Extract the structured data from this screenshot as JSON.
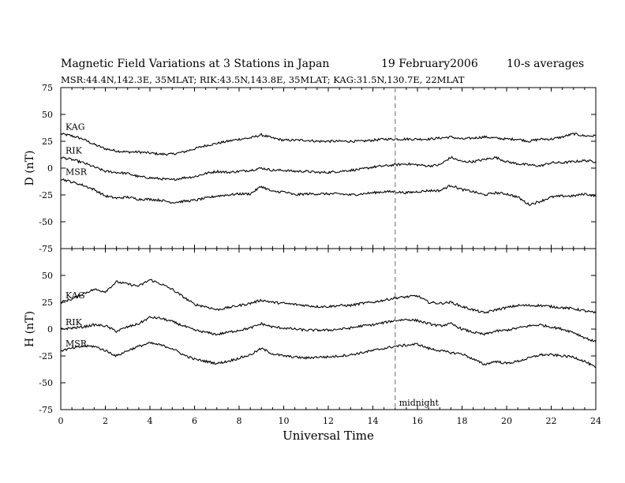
{
  "header": {
    "title": "Magnetic Field Variations at 3 Stations in Japan",
    "date": "19 February2006",
    "averaging": "10-s averages",
    "subtitle": "MSR:44.4N,142.3E, 35MLAT;  RIK:43.5N,143.8E, 35MLAT;  KAG:31.5N,130.7E, 22MLAT"
  },
  "chart_data": {
    "type": "line",
    "title": "Magnetic Field Variations at 3 Stations in Japan",
    "xlabel": "Universal Time",
    "xlim": [
      0,
      24
    ],
    "x_ticks": [
      0,
      2,
      4,
      6,
      8,
      10,
      12,
      14,
      16,
      18,
      20,
      22,
      24
    ],
    "annotation": {
      "text": "midnight",
      "x": 15
    },
    "panels": [
      {
        "name": "D",
        "ylabel": "D (nT)",
        "ylim": [
          -75,
          75
        ],
        "y_ticks": [
          75,
          50,
          25,
          0,
          -25,
          -50,
          -75
        ],
        "x": [
          0,
          0.5,
          1,
          1.5,
          2,
          2.5,
          3,
          3.5,
          4,
          4.5,
          5,
          5.5,
          6,
          6.5,
          7,
          7.5,
          8,
          8.5,
          9,
          9.5,
          10,
          10.5,
          11,
          11.5,
          12,
          12.5,
          13,
          13.5,
          14,
          14.5,
          15,
          15.5,
          16,
          16.5,
          17,
          17.5,
          18,
          18.5,
          19,
          19.5,
          20,
          20.5,
          21,
          21.5,
          22,
          22.5,
          23,
          23.5,
          24
        ],
        "series": [
          {
            "name": "KAG",
            "values": [
              32,
              30,
              27,
              22,
              18,
              16,
              15,
              15,
              14,
              13,
              13,
              15,
              18,
              21,
              23,
              25,
              27,
              28,
              31,
              28,
              26,
              26,
              26,
              25,
              25,
              25,
              25,
              25,
              26,
              27,
              27,
              27,
              27,
              27,
              28,
              29,
              27,
              28,
              29,
              28,
              27,
              27,
              25,
              27,
              27,
              29,
              32,
              30,
              30
            ]
          },
          {
            "name": "RIK",
            "values": [
              10,
              8,
              5,
              1,
              -3,
              -4,
              -5,
              -8,
              -9,
              -10,
              -11,
              -9,
              -8,
              -5,
              -3,
              -4,
              -3,
              -2,
              0,
              -2,
              -2,
              -3,
              -3,
              -4,
              -4,
              -3,
              -2,
              -1,
              1,
              2,
              3,
              4,
              3,
              2,
              3,
              10,
              6,
              6,
              8,
              10,
              6,
              4,
              3,
              2,
              5,
              5,
              6,
              7,
              6
            ]
          },
          {
            "name": "MSR",
            "values": [
              -10,
              -13,
              -16,
              -20,
              -26,
              -28,
              -27,
              -29,
              -29,
              -30,
              -32,
              -31,
              -30,
              -28,
              -26,
              -25,
              -24,
              -24,
              -17,
              -22,
              -22,
              -25,
              -24,
              -24,
              -24,
              -24,
              -25,
              -24,
              -23,
              -22,
              -22,
              -23,
              -22,
              -21,
              -21,
              -16,
              -20,
              -22,
              -25,
              -23,
              -24,
              -27,
              -34,
              -31,
              -27,
              -26,
              -26,
              -24,
              -26
            ]
          }
        ]
      },
      {
        "name": "H",
        "ylabel": "H (nT)",
        "ylim": [
          -75,
          75
        ],
        "y_ticks": [
          50,
          25,
          0,
          -25,
          -50,
          -75
        ],
        "x": [
          0,
          0.5,
          1,
          1.5,
          2,
          2.5,
          3,
          3.5,
          4,
          4.5,
          5,
          5.5,
          6,
          6.5,
          7,
          7.5,
          8,
          8.5,
          9,
          9.5,
          10,
          10.5,
          11,
          11.5,
          12,
          12.5,
          13,
          13.5,
          14,
          14.5,
          15,
          15.5,
          16,
          16.5,
          17,
          17.5,
          18,
          18.5,
          19,
          19.5,
          20,
          20.5,
          21,
          21.5,
          22,
          22.5,
          23,
          23.5,
          24
        ],
        "series": [
          {
            "name": "KAG",
            "values": [
              25,
              28,
              33,
              37,
              35,
              44,
              42,
              40,
              46,
              42,
              37,
              30,
              23,
              21,
              18,
              20,
              22,
              24,
              27,
              25,
              24,
              23,
              22,
              21,
              21,
              22,
              22,
              24,
              25,
              27,
              29,
              30,
              31,
              25,
              24,
              25,
              21,
              18,
              15,
              18,
              20,
              22,
              22,
              22,
              21,
              20,
              19,
              17,
              15
            ]
          },
          {
            "name": "RIK",
            "values": [
              0,
              1,
              2,
              4,
              3,
              -2,
              2,
              5,
              11,
              10,
              7,
              3,
              -1,
              -3,
              -5,
              -3,
              -1,
              1,
              5,
              2,
              1,
              0,
              -1,
              -1,
              -1,
              0,
              1,
              3,
              4,
              6,
              8,
              9,
              8,
              5,
              3,
              5,
              0,
              -3,
              -5,
              -2,
              -1,
              1,
              3,
              4,
              2,
              0,
              -3,
              -8,
              -12
            ]
          },
          {
            "name": "MSR",
            "values": [
              -20,
              -18,
              -16,
              -16,
              -20,
              -25,
              -20,
              -16,
              -13,
              -15,
              -18,
              -24,
              -28,
              -30,
              -32,
              -30,
              -27,
              -24,
              -18,
              -23,
              -25,
              -26,
              -27,
              -26,
              -26,
              -25,
              -24,
              -22,
              -20,
              -18,
              -16,
              -15,
              -14,
              -18,
              -20,
              -22,
              -23,
              -28,
              -33,
              -30,
              -32,
              -30,
              -27,
              -24,
              -24,
              -25,
              -26,
              -30,
              -36
            ]
          }
        ]
      }
    ]
  }
}
